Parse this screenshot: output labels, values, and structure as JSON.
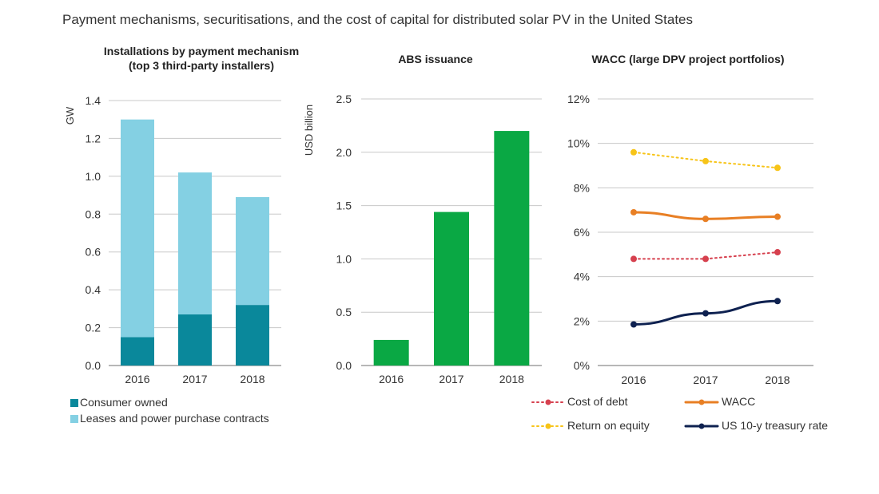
{
  "title": "Payment mechanisms, securitisations, and the cost of capital for distributed solar PV in the United States",
  "colors": {
    "consumer_owned": "#0a889b",
    "leases": "#84d0e3",
    "abs": "#0aa844",
    "cost_of_debt": "#d6404e",
    "wacc": "#e87f24",
    "return_on_equity": "#f7c418",
    "treasury": "#0e2150",
    "grid": "#c8c8c8",
    "axis": "#8c8c8c"
  },
  "chart_data": [
    {
      "type": "bar",
      "stacked": true,
      "title_lines": [
        "Installations by payment mechanism",
        "(top 3 third-party installers)"
      ],
      "ylabel": "GW",
      "categories": [
        "2016",
        "2017",
        "2018"
      ],
      "ylim": [
        0,
        1.4
      ],
      "yticks": [
        "0.0",
        "0.2",
        "0.4",
        "0.6",
        "0.8",
        "1.0",
        "1.2",
        "1.4"
      ],
      "ytick_values": [
        0,
        0.2,
        0.4,
        0.6,
        0.8,
        1.0,
        1.2,
        1.4
      ],
      "series": [
        {
          "name": "Consumer owned",
          "color_key": "consumer_owned",
          "values": [
            0.15,
            0.27,
            0.32
          ]
        },
        {
          "name": "Leases and power purchase contracts",
          "color_key": "leases",
          "values": [
            1.15,
            0.75,
            0.57
          ]
        }
      ],
      "grid": true,
      "legend": "bottom-left"
    },
    {
      "type": "bar",
      "title_lines": [
        "ABS issuance"
      ],
      "ylabel": "USD billion",
      "categories": [
        "2016",
        "2017",
        "2018"
      ],
      "ylim": [
        0,
        2.5
      ],
      "yticks": [
        "0.0",
        "0.5",
        "1.0",
        "1.5",
        "2.0",
        "2.5"
      ],
      "ytick_values": [
        0,
        0.5,
        1.0,
        1.5,
        2.0,
        2.5
      ],
      "series": [
        {
          "color_key": "abs",
          "values": [
            0.24,
            1.44,
            2.2
          ]
        }
      ],
      "grid": true
    },
    {
      "type": "line",
      "title_lines": [
        "WACC (large DPV project portfolios)"
      ],
      "categories": [
        "2016",
        "2017",
        "2018"
      ],
      "ylim": [
        0,
        12
      ],
      "yticks": [
        "0%",
        "2%",
        "4%",
        "6%",
        "8%",
        "10%",
        "12%"
      ],
      "ytick_values": [
        0,
        2,
        4,
        6,
        8,
        10,
        12
      ],
      "series": [
        {
          "name": "Return on equity",
          "color_key": "return_on_equity",
          "values": [
            9.6,
            9.2,
            8.9
          ],
          "style": "dotted"
        },
        {
          "name": "WACC",
          "color_key": "wacc",
          "values": [
            6.9,
            6.6,
            6.7
          ],
          "style": "solid"
        },
        {
          "name": "Cost of debt",
          "color_key": "cost_of_debt",
          "values": [
            4.8,
            4.8,
            5.1
          ],
          "style": "dotted"
        },
        {
          "name": "US 10-y treasury rate",
          "color_key": "treasury",
          "values": [
            1.85,
            2.35,
            2.9
          ],
          "style": "solid"
        }
      ],
      "legend_order": [
        "Cost of debt",
        "WACC",
        "Return on equity",
        "US 10-y treasury rate"
      ],
      "grid": true,
      "legend": "bottom"
    }
  ]
}
